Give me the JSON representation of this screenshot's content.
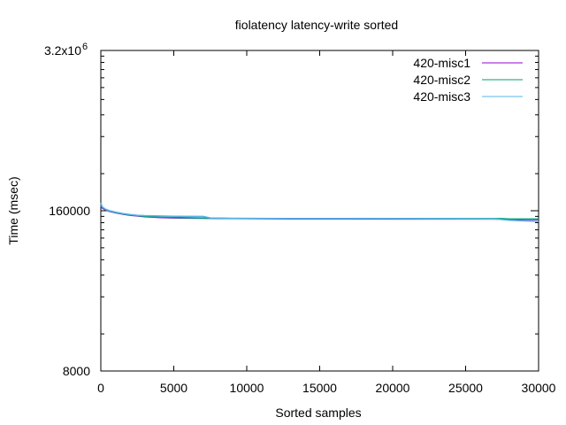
{
  "chart_data": {
    "type": "line",
    "title": "fiolatency latency-write sorted",
    "xlabel": "Sorted samples",
    "ylabel": "Time (msec)",
    "xlim": [
      0,
      30000
    ],
    "ylim": [
      8000,
      3200000
    ],
    "yscale": "log",
    "grid": false,
    "legend_position": "top-right",
    "x_ticks": [
      "0",
      "5000",
      "10000",
      "15000",
      "20000",
      "25000",
      "30000"
    ],
    "y_ticks": [
      {
        "value": 8000,
        "label": "8000",
        "exp": ""
      },
      {
        "value": 160000,
        "label": "160000",
        "exp": ""
      },
      {
        "value": 3200000,
        "label": "3.2x10",
        "exp": "6"
      }
    ],
    "series": [
      {
        "name": "420-misc1",
        "color": "#9400d3",
        "points": [
          [
            0,
            175000
          ],
          [
            100,
            168000
          ],
          [
            300,
            163000
          ],
          [
            600,
            158000
          ],
          [
            1000,
            154000
          ],
          [
            1500,
            150000
          ],
          [
            2000,
            147000
          ],
          [
            2500,
            145000
          ],
          [
            3000,
            143000
          ],
          [
            4000,
            141000
          ],
          [
            5000,
            140000
          ],
          [
            7000,
            139000
          ],
          [
            10000,
            138000
          ],
          [
            13000,
            137500
          ],
          [
            20000,
            137000
          ],
          [
            27000,
            137000
          ],
          [
            28000,
            136000
          ],
          [
            30000,
            135500
          ]
        ]
      },
      {
        "name": "420-misc2",
        "color": "#009e73",
        "points": [
          [
            0,
            178000
          ],
          [
            100,
            170000
          ],
          [
            300,
            164000
          ],
          [
            600,
            159000
          ],
          [
            1000,
            155000
          ],
          [
            1500,
            151000
          ],
          [
            2000,
            148000
          ],
          [
            2500,
            146000
          ],
          [
            3000,
            144000
          ],
          [
            4000,
            142000
          ],
          [
            5000,
            141000
          ],
          [
            7000,
            139500
          ],
          [
            9000,
            138500
          ],
          [
            12000,
            138000
          ],
          [
            15000,
            138000
          ],
          [
            20000,
            138000
          ],
          [
            27500,
            138000
          ],
          [
            28000,
            137000
          ],
          [
            30000,
            137000
          ]
        ]
      },
      {
        "name": "420-misc3",
        "color": "#56b4e9",
        "points": [
          [
            0,
            185000
          ],
          [
            100,
            172000
          ],
          [
            300,
            165000
          ],
          [
            600,
            160000
          ],
          [
            1000,
            156000
          ],
          [
            1500,
            152000
          ],
          [
            2000,
            149000
          ],
          [
            2500,
            147000
          ],
          [
            3000,
            146000
          ],
          [
            4000,
            145000
          ],
          [
            5000,
            144500
          ],
          [
            7000,
            144000
          ],
          [
            7500,
            140000
          ],
          [
            9000,
            139000
          ],
          [
            12000,
            138500
          ],
          [
            20000,
            138000
          ],
          [
            27000,
            137500
          ],
          [
            28000,
            134000
          ],
          [
            30000,
            131000
          ]
        ]
      }
    ]
  }
}
